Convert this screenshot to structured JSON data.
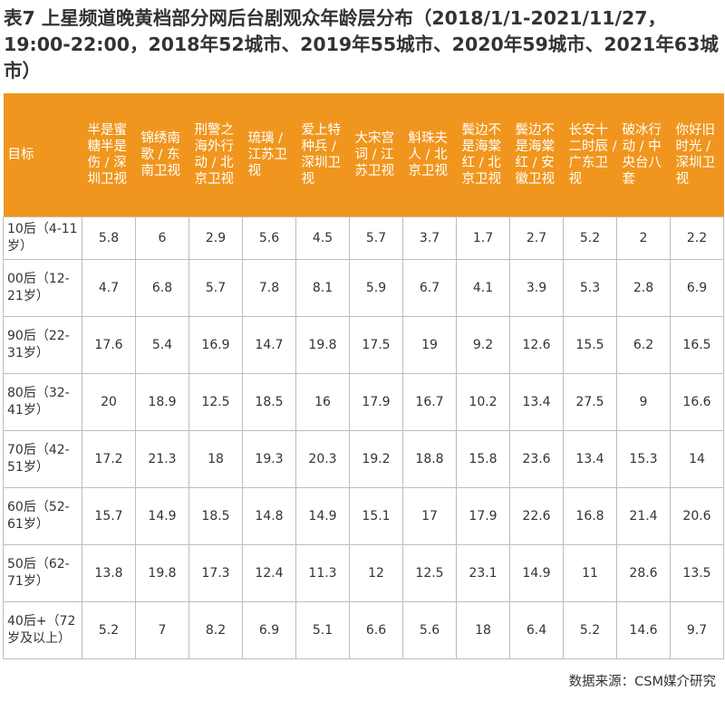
{
  "title": "表7 上星频道晚黄档部分网后台剧观众年龄层分布（2018/1/1-2021/11/27，19:00-22:00，2018年52城市、2019年55城市、2020年59城市、2021年63城市）",
  "table": {
    "corner": "目标",
    "columns": [
      "半是蜜糖半是伤 / 深圳卫视",
      "锦绣南歌 / 东南卫视",
      "刑警之海外行动 / 北京卫视",
      "琉璃 / 江苏卫视",
      "爱上特种兵 / 深圳卫视",
      "大宋宫词 / 江苏卫视",
      "斛珠夫人 / 北京卫视",
      "鬓边不是海棠红 / 北京卫视",
      "鬓边不是海棠红 / 安徽卫视",
      "长安十二时辰 / 广东卫视",
      "破冰行动 / 中央台八套",
      "你好旧时光 / 深圳卫视"
    ],
    "rows": [
      {
        "label": "10后（4-11岁）",
        "values": [
          "5.8",
          "6",
          "2.9",
          "5.6",
          "4.5",
          "5.7",
          "3.7",
          "1.7",
          "2.7",
          "5.2",
          "2",
          "2.2"
        ]
      },
      {
        "label": "00后（12-21岁）",
        "values": [
          "4.7",
          "6.8",
          "5.7",
          "7.8",
          "8.1",
          "5.9",
          "6.7",
          "4.1",
          "3.9",
          "5.3",
          "2.8",
          "6.9"
        ]
      },
      {
        "label": "90后（22-31岁）",
        "values": [
          "17.6",
          "5.4",
          "16.9",
          "14.7",
          "19.8",
          "17.5",
          "19",
          "9.2",
          "12.6",
          "15.5",
          "6.2",
          "16.5"
        ]
      },
      {
        "label": "80后（32-41岁）",
        "values": [
          "20",
          "18.9",
          "12.5",
          "18.5",
          "16",
          "17.9",
          "16.7",
          "10.2",
          "13.4",
          "27.5",
          "9",
          "16.6"
        ]
      },
      {
        "label": "70后（42-51岁）",
        "values": [
          "17.2",
          "21.3",
          "18",
          "19.3",
          "20.3",
          "19.2",
          "18.8",
          "15.8",
          "23.6",
          "13.4",
          "15.3",
          "14"
        ]
      },
      {
        "label": "60后（52-61岁）",
        "values": [
          "15.7",
          "14.9",
          "18.5",
          "14.8",
          "14.9",
          "15.1",
          "17",
          "17.9",
          "22.6",
          "16.8",
          "21.4",
          "20.6"
        ]
      },
      {
        "label": "50后（62-71岁）",
        "values": [
          "13.8",
          "19.8",
          "17.3",
          "12.4",
          "11.3",
          "12",
          "12.5",
          "23.1",
          "14.9",
          "11",
          "28.6",
          "13.5"
        ]
      },
      {
        "label": "40后+（72岁及以上）",
        "values": [
          "5.2",
          "7",
          "8.2",
          "6.9",
          "5.1",
          "6.6",
          "5.6",
          "18",
          "6.4",
          "5.2",
          "14.6",
          "9.7"
        ]
      }
    ]
  },
  "source": "数据来源：CSM媒介研究",
  "colors": {
    "header_bg": "#f0961e",
    "header_text": "#ffffff",
    "border": "#bdbdbd"
  }
}
